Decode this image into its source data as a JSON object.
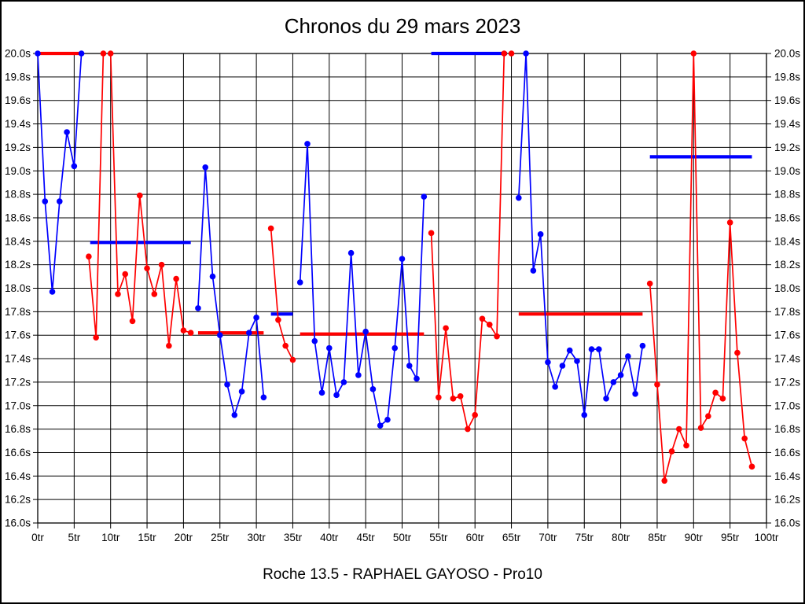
{
  "page": {
    "title": "Chronos du 29 mars 2023",
    "footer": "Roche 13.5 - RAPHAEL GAYOSO - Pro10"
  },
  "chart_data": {
    "type": "line",
    "title": "Chronos du 29 mars 2023",
    "subtitle": "Roche 13.5 - RAPHAEL GAYOSO - Pro10",
    "xlabel": "",
    "ylabel": "",
    "grid": true,
    "legend": "none",
    "clip_value": 20.0,
    "colors": {
      "blue": "#0000ff",
      "red": "#ff0000"
    },
    "x_axis": {
      "min": 0,
      "max": 100,
      "tick_step": 5,
      "suffix": "tr",
      "tick_labels": [
        "0tr",
        "5tr",
        "10tr",
        "15tr",
        "20tr",
        "25tr",
        "30tr",
        "35tr",
        "40tr",
        "45tr",
        "50tr",
        "55tr",
        "60tr",
        "65tr",
        "70tr",
        "75tr",
        "80tr",
        "85tr",
        "90tr",
        "95tr",
        "100tr"
      ]
    },
    "y_axis": {
      "min": 16.0,
      "max": 20.0,
      "tick_step": 0.2,
      "suffix": "s",
      "sides": [
        "left",
        "right"
      ],
      "tick_labels": [
        "20.0s",
        "19.8s",
        "19.6s",
        "19.4s",
        "19.2s",
        "19.0s",
        "18.8s",
        "18.6s",
        "18.4s",
        "18.2s",
        "18.0s",
        "17.8s",
        "17.6s",
        "17.4s",
        "17.2s",
        "17.0s",
        "16.8s",
        "16.6s",
        "16.4s",
        "16.2s",
        "16.0s"
      ]
    },
    "stints": [
      {
        "name": "stint-1",
        "color": "blue",
        "laps": [
          [
            0,
            20.0
          ],
          [
            1,
            18.74
          ],
          [
            2,
            17.97
          ],
          [
            3,
            18.74
          ],
          [
            4,
            19.33
          ],
          [
            5,
            19.04
          ],
          [
            6,
            20.0
          ]
        ]
      },
      {
        "name": "stint-2",
        "color": "red",
        "laps": [
          [
            7,
            18.27
          ],
          [
            8,
            17.58
          ],
          [
            9,
            20.0
          ],
          [
            10,
            20.0
          ],
          [
            11,
            17.95
          ],
          [
            12,
            18.12
          ],
          [
            13,
            17.72
          ],
          [
            14,
            18.79
          ],
          [
            15,
            18.17
          ],
          [
            16,
            17.95
          ],
          [
            17,
            18.2
          ],
          [
            18,
            17.51
          ],
          [
            19,
            18.08
          ],
          [
            20,
            17.64
          ],
          [
            21,
            17.62
          ]
        ]
      },
      {
        "name": "stint-3",
        "color": "blue",
        "laps": [
          [
            22,
            17.83
          ],
          [
            23,
            19.03
          ],
          [
            24,
            18.1
          ],
          [
            25,
            17.6
          ],
          [
            26,
            17.18
          ],
          [
            27,
            16.92
          ],
          [
            28,
            17.12
          ],
          [
            29,
            17.62
          ],
          [
            30,
            17.75
          ],
          [
            31,
            17.07
          ]
        ]
      },
      {
        "name": "stint-4",
        "color": "red",
        "laps": [
          [
            32,
            18.51
          ],
          [
            33,
            17.73
          ],
          [
            34,
            17.51
          ],
          [
            35,
            17.39
          ]
        ]
      },
      {
        "name": "stint-5",
        "color": "blue",
        "laps": [
          [
            36,
            18.05
          ],
          [
            37,
            19.23
          ],
          [
            38,
            17.55
          ],
          [
            39,
            17.11
          ],
          [
            40,
            17.49
          ],
          [
            41,
            17.09
          ],
          [
            42,
            17.2
          ],
          [
            43,
            18.3
          ],
          [
            44,
            17.26
          ],
          [
            45,
            17.63
          ],
          [
            46,
            17.14
          ],
          [
            47,
            16.83
          ],
          [
            48,
            16.88
          ],
          [
            49,
            17.49
          ],
          [
            50,
            18.25
          ],
          [
            51,
            17.34
          ],
          [
            52,
            17.23
          ],
          [
            53,
            18.78
          ]
        ]
      },
      {
        "name": "stint-6",
        "color": "red",
        "laps": [
          [
            54,
            18.47
          ],
          [
            55,
            17.07
          ],
          [
            56,
            17.66
          ],
          [
            57,
            17.06
          ],
          [
            58,
            17.08
          ],
          [
            59,
            16.8
          ],
          [
            60,
            16.92
          ],
          [
            61,
            17.74
          ],
          [
            62,
            17.69
          ],
          [
            63,
            17.59
          ],
          [
            64,
            20.0
          ],
          [
            65,
            20.0
          ]
        ]
      },
      {
        "name": "stint-7",
        "color": "blue",
        "laps": [
          [
            66,
            18.77
          ],
          [
            67,
            20.0
          ],
          [
            68,
            18.15
          ],
          [
            69,
            18.46
          ],
          [
            70,
            17.37
          ],
          [
            71,
            17.16
          ],
          [
            72,
            17.34
          ],
          [
            73,
            17.47
          ],
          [
            74,
            17.38
          ],
          [
            75,
            16.92
          ],
          [
            76,
            17.48
          ],
          [
            77,
            17.48
          ],
          [
            78,
            17.06
          ],
          [
            79,
            17.2
          ],
          [
            80,
            17.26
          ],
          [
            81,
            17.42
          ],
          [
            82,
            17.1
          ],
          [
            83,
            17.51
          ]
        ]
      },
      {
        "name": "stint-8",
        "color": "red",
        "laps": [
          [
            84,
            18.04
          ],
          [
            85,
            17.18
          ],
          [
            86,
            16.36
          ],
          [
            87,
            16.61
          ],
          [
            88,
            16.8
          ],
          [
            89,
            16.66
          ],
          [
            90,
            20.0
          ],
          [
            91,
            16.81
          ],
          [
            92,
            16.91
          ],
          [
            93,
            17.11
          ],
          [
            94,
            17.06
          ],
          [
            95,
            18.56
          ],
          [
            96,
            17.45
          ],
          [
            97,
            16.72
          ],
          [
            98,
            16.48
          ]
        ]
      }
    ],
    "average_lines": [
      {
        "color": "red",
        "value": 20.0,
        "from": 0,
        "to": 6.3
      },
      {
        "color": "blue",
        "value": 18.39,
        "from": 7.2,
        "to": 21
      },
      {
        "color": "red",
        "value": 17.62,
        "from": 22,
        "to": 31
      },
      {
        "color": "blue",
        "value": 17.78,
        "from": 32,
        "to": 35
      },
      {
        "color": "red",
        "value": 17.61,
        "from": 36,
        "to": 53
      },
      {
        "color": "blue",
        "value": 20.0,
        "from": 54,
        "to": 64.4
      },
      {
        "color": "red",
        "value": 17.78,
        "from": 66,
        "to": 83
      },
      {
        "color": "blue",
        "value": 19.12,
        "from": 84,
        "to": 98
      }
    ]
  }
}
